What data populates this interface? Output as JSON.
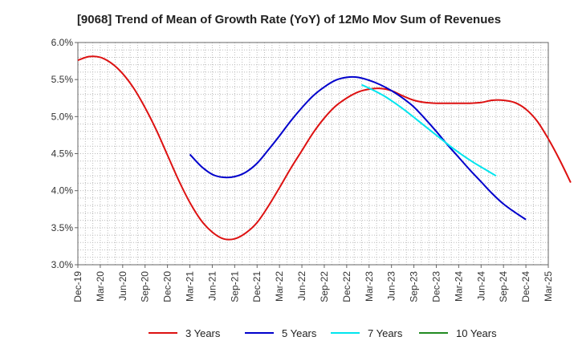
{
  "chart_data": {
    "type": "line",
    "title": "[9068]  Trend of Mean of Growth Rate (YoY) of 12Mo Mov Sum of Revenues",
    "xlabel": "",
    "ylabel": "",
    "ylim": [
      3.0,
      6.0
    ],
    "y_ticks": [
      "3.0%",
      "3.5%",
      "4.0%",
      "4.5%",
      "5.0%",
      "5.5%",
      "6.0%"
    ],
    "y_tick_values": [
      3.0,
      3.5,
      4.0,
      4.5,
      5.0,
      5.5,
      6.0
    ],
    "x_ticks": [
      "Dec-19",
      "Mar-20",
      "Jun-20",
      "Sep-20",
      "Dec-20",
      "Mar-21",
      "Jun-21",
      "Sep-21",
      "Dec-21",
      "Mar-22",
      "Jun-22",
      "Sep-22",
      "Dec-22",
      "Mar-23",
      "Jun-23",
      "Sep-23",
      "Dec-23",
      "Mar-24",
      "Jun-24",
      "Sep-24",
      "Dec-24",
      "Mar-25"
    ],
    "grid": true,
    "series": [
      {
        "name": "3 Years",
        "color": "#dd1111",
        "start_index": 0,
        "values": [
          5.76,
          5.81,
          5.8,
          5.72,
          5.58,
          5.38,
          5.12,
          4.82,
          4.48,
          4.14,
          3.84,
          3.6,
          3.44,
          3.35,
          3.35,
          3.43,
          3.57,
          3.79,
          4.04,
          4.3,
          4.54,
          4.78,
          4.98,
          5.14,
          5.25,
          5.33,
          5.37,
          5.38,
          5.35,
          5.28,
          5.22,
          5.19,
          5.18,
          5.18,
          5.18,
          5.18,
          5.19,
          5.22,
          5.22,
          5.19,
          5.1,
          4.94,
          4.7,
          4.42,
          4.11
        ]
      },
      {
        "name": "5 Years",
        "color": "#0000cc",
        "start_index": 15,
        "values": [
          4.49,
          4.33,
          4.22,
          4.18,
          4.19,
          4.25,
          4.37,
          4.55,
          4.74,
          4.94,
          5.12,
          5.28,
          5.4,
          5.49,
          5.53,
          5.53,
          5.49,
          5.43,
          5.35,
          5.25,
          5.13,
          4.97,
          4.8,
          4.62,
          4.45,
          4.28,
          4.12,
          3.96,
          3.82,
          3.71,
          3.61
        ]
      },
      {
        "name": "7 Years",
        "color": "#00e5ee",
        "start_index": 38,
        "values": [
          5.43,
          5.36,
          5.28,
          5.18,
          5.07,
          4.95,
          4.83,
          4.71,
          4.59,
          4.48,
          4.38,
          4.29,
          4.2
        ]
      },
      {
        "name": "10 Years",
        "color": "#228b22",
        "start_index": 0,
        "values": []
      }
    ]
  }
}
